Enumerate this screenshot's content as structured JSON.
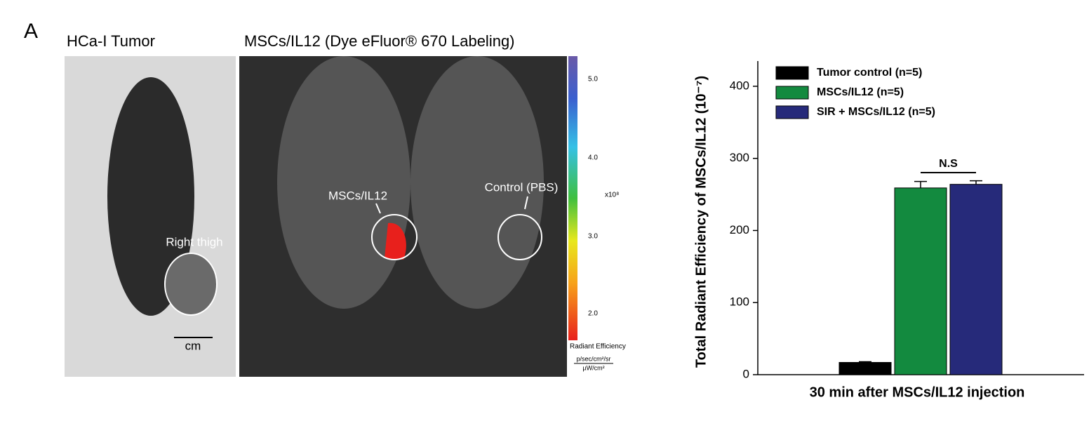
{
  "figure": {
    "panel": "A",
    "left_title": "HCa-I Tumor",
    "middle_title": "MSCs/IL12 (Dye eFluor® 670 Labeling)",
    "right_thigh": "Right thigh",
    "scale": "cm",
    "label_mscs": "MSCs/IL12",
    "label_control": "Control (PBS)",
    "colorbar": {
      "ticks": [
        "5.0",
        "4.0",
        "3.0",
        "2.0"
      ],
      "multiplier": "x10⁸",
      "title": "Radiant Efficiency",
      "unit_top": "p/sec/cm²/sr",
      "unit_bottom": "µW/cm²"
    }
  },
  "chart_data": {
    "type": "bar",
    "ylabel": "Total Radiant Efficiency of MSCs/IL12 (10⁻⁷)",
    "xlabel": "30 min after MSCs/IL12 injection",
    "categories": [
      null
    ],
    "series": [
      {
        "name": "Tumor control (n=5)",
        "color": "#000000",
        "values": [
          17
        ],
        "errors": [
          1
        ]
      },
      {
        "name": "MSCs/IL12 (n=5)",
        "color": "#138a3f",
        "values": [
          259
        ],
        "errors": [
          9
        ]
      },
      {
        "name": "SIR + MSCs/IL12 (n=5)",
        "color": "#262a7a",
        "values": [
          264
        ],
        "errors": [
          5
        ]
      }
    ],
    "annotation": "N.S",
    "ylim": [
      0,
      435
    ],
    "yticks": [
      0,
      100,
      200,
      300,
      400
    ],
    "grid": false,
    "legend": "top-left"
  }
}
